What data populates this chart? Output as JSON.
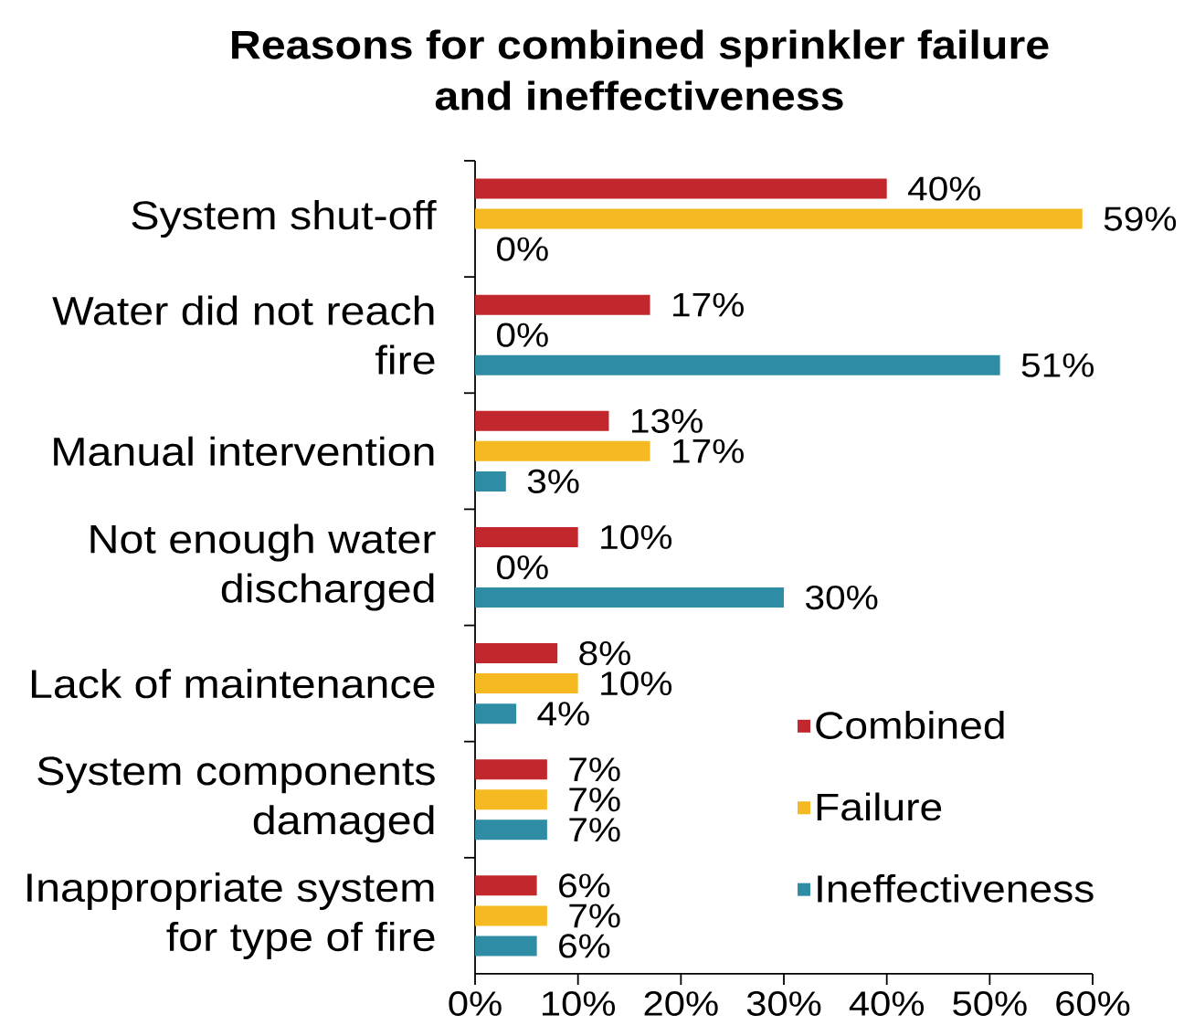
{
  "chart_data": {
    "type": "bar",
    "orientation": "horizontal",
    "title": "Reasons for combined sprinkler failure and ineffectiveness",
    "categories": [
      "System shut-off",
      "Water did not reach fire",
      "Manual intervention",
      "Not enough water discharged",
      "Lack of maintenance",
      "System components damaged",
      "Inappropriate system for type of fire"
    ],
    "series": [
      {
        "name": "Combined",
        "color": "#c1272d",
        "values": [
          40,
          17,
          13,
          10,
          8,
          7,
          6
        ],
        "value_labels": [
          "40%",
          "17%",
          "13%",
          "10%",
          "8%",
          "7%",
          "6%"
        ]
      },
      {
        "name": "Failure",
        "color": "#f5b921",
        "values": [
          59,
          0,
          17,
          0,
          10,
          7,
          7
        ],
        "value_labels": [
          "59%",
          "0%",
          "17%",
          "0%",
          "10%",
          "7%",
          "7%"
        ]
      },
      {
        "name": "Ineffectiveness",
        "color": "#2e8da4",
        "values": [
          0,
          51,
          3,
          30,
          4,
          7,
          6
        ],
        "value_labels": [
          "0%",
          "51%",
          "3%",
          "30%",
          "4%",
          "7%",
          "6%"
        ]
      }
    ],
    "xlim": [
      0,
      60
    ],
    "xticks": [
      {
        "value": 0,
        "label": "0%"
      },
      {
        "value": 10,
        "label": "10%"
      },
      {
        "value": 20,
        "label": "20%"
      },
      {
        "value": 30,
        "label": "30%"
      },
      {
        "value": 40,
        "label": "40%"
      },
      {
        "value": 50,
        "label": "50%"
      },
      {
        "value": 60,
        "label": "60%"
      }
    ],
    "legend": "bottom right"
  }
}
